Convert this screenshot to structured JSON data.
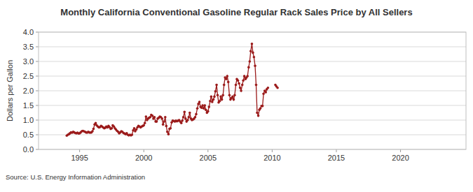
{
  "chart_data": {
    "type": "line",
    "title": "Monthly California Conventional Gasoline Regular Rack Sales Price by All Sellers",
    "y_label": "Dollars per Gallon",
    "source": "Source: U.S. Energy Information Administration",
    "color": "#9b1b1b",
    "marker": "circle",
    "line_style": "solid",
    "grid": true,
    "xlim": [
      1991.8,
      2025.1
    ],
    "xticks": [
      1995,
      2000,
      2005,
      2010,
      2015,
      2020
    ],
    "ylim": [
      0,
      4
    ],
    "yticks": [
      {
        "value": 0,
        "label": "0.0"
      },
      0.5,
      {
        "value": 1,
        "label": "1.0"
      },
      1.5,
      {
        "value": 2,
        "label": "2.0"
      },
      2.5,
      {
        "value": 3,
        "label": "3.0"
      },
      3.5,
      {
        "value": 4,
        "label": "4.0"
      }
    ],
    "x": [
      1994.0,
      1994.08,
      1994.17,
      1994.25,
      1994.33,
      1994.42,
      1994.5,
      1994.58,
      1994.67,
      1994.75,
      1994.83,
      1994.92,
      1995.0,
      1995.08,
      1995.17,
      1995.25,
      1995.33,
      1995.42,
      1995.5,
      1995.58,
      1995.67,
      1995.75,
      1995.83,
      1995.92,
      1996.0,
      1996.08,
      1996.17,
      1996.25,
      1996.33,
      1996.42,
      1996.5,
      1996.58,
      1996.67,
      1996.75,
      1996.83,
      1996.92,
      1997.0,
      1997.08,
      1997.17,
      1997.25,
      1997.33,
      1997.42,
      1997.5,
      1997.58,
      1997.67,
      1997.75,
      1997.83,
      1997.92,
      1998.0,
      1998.08,
      1998.17,
      1998.25,
      1998.33,
      1998.42,
      1998.5,
      1998.58,
      1998.67,
      1998.75,
      1998.83,
      1998.92,
      1999.0,
      1999.08,
      1999.17,
      1999.25,
      1999.33,
      1999.42,
      1999.5,
      1999.58,
      1999.67,
      1999.75,
      1999.83,
      1999.92,
      2000.0,
      2000.08,
      2000.17,
      2000.25,
      2000.33,
      2000.42,
      2000.5,
      2000.58,
      2000.67,
      2000.75,
      2000.83,
      2000.92,
      2001.0,
      2001.08,
      2001.17,
      2001.25,
      2001.33,
      2001.42,
      2001.5,
      2001.58,
      2001.67,
      2001.75,
      2001.83,
      2001.92,
      2002.0,
      2002.08,
      2002.17,
      2002.25,
      2002.33,
      2002.42,
      2002.5,
      2002.58,
      2002.67,
      2002.75,
      2002.83,
      2002.92,
      2003.0,
      2003.08,
      2003.17,
      2003.25,
      2003.33,
      2003.42,
      2003.5,
      2003.58,
      2003.67,
      2003.75,
      2003.83,
      2003.92,
      2004.0,
      2004.08,
      2004.17,
      2004.25,
      2004.33,
      2004.42,
      2004.5,
      2004.58,
      2004.67,
      2004.75,
      2004.83,
      2004.92,
      2005.0,
      2005.08,
      2005.17,
      2005.25,
      2005.33,
      2005.42,
      2005.5,
      2005.58,
      2005.67,
      2005.75,
      2005.83,
      2005.92,
      2006.0,
      2006.08,
      2006.17,
      2006.25,
      2006.33,
      2006.42,
      2006.5,
      2006.58,
      2006.67,
      2006.75,
      2006.83,
      2006.92,
      2007.0,
      2007.08,
      2007.17,
      2007.25,
      2007.33,
      2007.42,
      2007.5,
      2007.58,
      2007.67,
      2007.75,
      2007.83,
      2007.92,
      2008.0,
      2008.08,
      2008.17,
      2008.25,
      2008.33,
      2008.42,
      2008.5,
      2008.58,
      2008.67,
      2008.75,
      2008.83,
      2008.92,
      2009.0,
      2009.08,
      2009.17,
      2009.25,
      2009.33,
      2009.42,
      2009.5,
      2009.58,
      2009.67,
      2009.75,
      2009.83,
      2009.92,
      2010.0,
      2010.08,
      2010.17,
      2010.25,
      2010.33,
      2010.42
    ],
    "values": [
      0.47,
      0.5,
      0.52,
      0.55,
      0.58,
      0.57,
      0.6,
      0.58,
      0.56,
      0.55,
      0.57,
      0.54,
      0.55,
      0.58,
      0.62,
      0.63,
      0.62,
      0.6,
      0.58,
      0.57,
      0.6,
      0.58,
      0.57,
      0.58,
      0.62,
      0.7,
      0.85,
      0.9,
      0.82,
      0.78,
      0.75,
      0.76,
      0.8,
      0.78,
      0.75,
      0.72,
      0.74,
      0.78,
      0.75,
      0.8,
      0.76,
      0.7,
      0.72,
      0.82,
      0.78,
      0.72,
      0.68,
      0.63,
      0.6,
      0.55,
      0.58,
      0.62,
      0.6,
      0.56,
      0.54,
      0.52,
      0.55,
      0.5,
      0.48,
      0.5,
      0.48,
      0.5,
      0.65,
      0.72,
      0.62,
      0.68,
      0.75,
      0.8,
      0.78,
      0.75,
      0.78,
      0.8,
      0.82,
      0.9,
      1.12,
      1.0,
      1.05,
      1.08,
      1.1,
      1.18,
      1.15,
      1.05,
      1.1,
      0.95,
      0.95,
      1.05,
      1.08,
      1.12,
      1.1,
      1.05,
      0.85,
      0.95,
      1.1,
      0.8,
      0.6,
      0.52,
      0.7,
      0.72,
      0.92,
      0.98,
      0.97,
      0.95,
      0.98,
      0.96,
      0.98,
      1.0,
      0.95,
      0.9,
      0.98,
      1.1,
      1.28,
      1.05,
      0.95,
      1.0,
      1.1,
      1.25,
      1.05,
      1.0,
      1.02,
      1.05,
      1.1,
      1.2,
      1.4,
      1.55,
      1.62,
      1.45,
      1.42,
      1.5,
      1.4,
      1.5,
      1.35,
      1.25,
      1.3,
      1.45,
      1.65,
      1.8,
      1.62,
      1.7,
      1.8,
      1.98,
      2.2,
      1.85,
      1.6,
      1.65,
      1.8,
      1.7,
      1.85,
      2.2,
      2.45,
      2.4,
      2.5,
      2.3,
      1.85,
      1.7,
      1.75,
      1.8,
      1.7,
      1.85,
      2.2,
      2.4,
      2.35,
      2.25,
      2.1,
      2.0,
      2.2,
      2.35,
      2.5,
      2.4,
      2.45,
      2.5,
      2.8,
      3.0,
      3.35,
      3.6,
      3.3,
      3.15,
      2.85,
      2.2,
      1.25,
      1.15,
      1.35,
      1.4,
      1.48,
      1.48,
      1.9,
      2.0,
      1.95,
      2.05,
      2.1,
      null,
      null,
      null,
      null,
      null,
      null,
      2.2,
      2.15,
      2.1
    ]
  }
}
